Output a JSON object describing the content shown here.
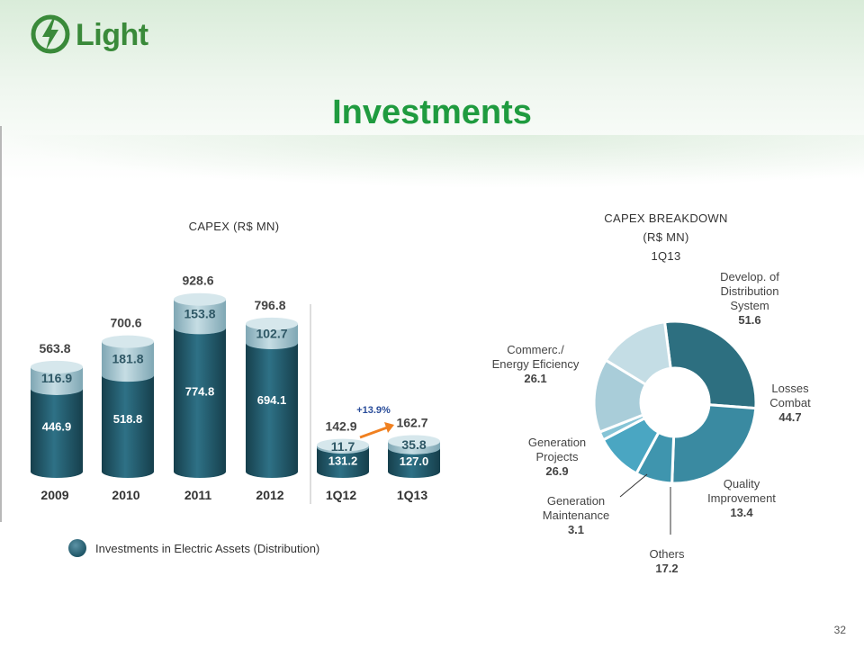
{
  "logo": {
    "text": "Light"
  },
  "title": "Investments",
  "page_number": "32",
  "legend": {
    "label": "Investments in Electric Assets (Distribution)"
  },
  "colors": {
    "title_green": "#1f9b3f",
    "dark_teal": "#1f5667",
    "light_teal": "#a8c8d3",
    "growth_arrow": "#f08020"
  },
  "chart_data": [
    {
      "type": "bar",
      "title": "CAPEX (R$ MN)",
      "categories": [
        "2009",
        "2010",
        "2011",
        "2012"
      ],
      "series": [
        {
          "name": "Investments in Electric Assets (Distribution)",
          "values": [
            446.9,
            518.8,
            774.8,
            694.1
          ]
        },
        {
          "values": [
            116.9,
            181.8,
            153.8,
            102.7
          ]
        }
      ],
      "totals": [
        563.8,
        700.6,
        928.6,
        796.8
      ],
      "ylim": [
        0,
        1000
      ]
    },
    {
      "type": "bar",
      "categories": [
        "1Q12",
        "1Q13"
      ],
      "series": [
        {
          "name": "Investments in Electric Assets (Distribution)",
          "values": [
            131.2,
            127.0
          ]
        },
        {
          "values": [
            11.7,
            35.8
          ]
        }
      ],
      "totals": [
        142.9,
        162.7
      ],
      "growth_label": "+13.9%"
    },
    {
      "type": "pie",
      "title_lines": [
        "CAPEX BREAKDOWN",
        "(R$ MN)",
        "1Q13"
      ],
      "slices": [
        {
          "label": "Develop. of Distribution System",
          "lines": [
            "Develop. of",
            "Distribution",
            "System"
          ],
          "value": 51.6,
          "value_text": "51.6",
          "color": "#2d6f80"
        },
        {
          "label": "Losses Combat",
          "lines": [
            "Losses",
            "Combat"
          ],
          "value": 44.7,
          "value_text": "44.7",
          "color": "#3a8aa1"
        },
        {
          "label": "Quality Improvement",
          "lines": [
            "Quality",
            "Improvement"
          ],
          "value": 13.4,
          "value_text": "13.4",
          "color": "#3f95ae"
        },
        {
          "label": "Others",
          "lines": [
            "Others"
          ],
          "value": 17.2,
          "value_text": "17.2",
          "color": "#4aa6c2"
        },
        {
          "label": "Generation Maintenance",
          "lines": [
            "Generation",
            "Maintenance"
          ],
          "value": 3.1,
          "value_text": "3.1",
          "color": "#86c4d6"
        },
        {
          "label": "Generation Projects",
          "lines": [
            "Generation",
            "Projects"
          ],
          "value": 26.9,
          "value_text": "26.9",
          "color": "#a9cdd9"
        },
        {
          "label": "Commerc./ Energy Eficiency",
          "lines": [
            "Commerc./",
            "Energy Eficiency"
          ],
          "value": 26.1,
          "value_text": "26.1",
          "color": "#c4dde5"
        }
      ]
    }
  ]
}
